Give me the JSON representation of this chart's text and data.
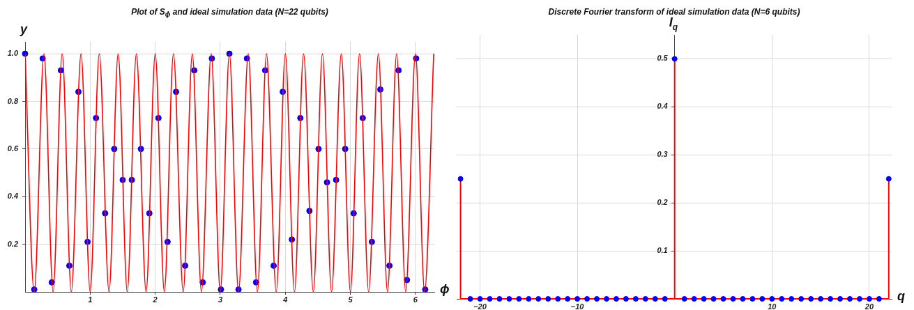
{
  "chart_data": [
    {
      "type": "line",
      "title": "Plot of S$_{ϕ}$ and ideal simulation data (N=22 qubits)",
      "xlabel": "ϕ",
      "ylabel": "y",
      "xlim": [
        0,
        6.29
      ],
      "ylim": [
        0,
        1.05
      ],
      "xticks": [
        1,
        2,
        3,
        4,
        5,
        6
      ],
      "yticks": [
        0.2,
        0.4,
        0.6,
        0.8,
        {
          "value": 1,
          "label": "1.0"
        }
      ],
      "grid": true,
      "series": [
        {
          "color": "#ff0000",
          "marker": "none",
          "x": [
            0,
            0.14,
            0.29,
            0.43,
            0.57,
            0.71,
            0.86,
            1.0,
            1.14,
            1.29,
            1.43,
            1.57,
            1.71,
            1.86,
            2.0,
            2.14,
            2.28,
            2.43,
            2.57,
            2.71,
            2.86,
            3.0,
            3.14,
            3.28,
            3.43,
            3.57,
            3.71,
            3.86,
            4.0,
            4.14,
            4.28,
            4.43,
            4.57,
            4.71,
            4.86,
            5.0,
            5.14,
            5.28,
            5.43,
            5.57,
            5.71,
            5.85,
            6.0,
            6.14,
            6.28
          ],
          "values": [
            1,
            0,
            1,
            0,
            1,
            0,
            1,
            0,
            1,
            0,
            1,
            0,
            1,
            0,
            1,
            0,
            1,
            0,
            1,
            0,
            1,
            0,
            1,
            0,
            1,
            0,
            1,
            0,
            1,
            0,
            1,
            0,
            1,
            0,
            1,
            0,
            1,
            0,
            1,
            0,
            1,
            0,
            1,
            0,
            1
          ]
        },
        {
          "type": "scatter",
          "color": "#0000ff",
          "marker": "circle",
          "x": [
            0,
            0.14,
            0.27,
            0.41,
            0.55,
            0.68,
            0.82,
            0.96,
            1.09,
            1.23,
            1.37,
            1.5,
            1.64,
            1.78,
            1.91,
            2.05,
            2.19,
            2.32,
            2.46,
            2.6,
            2.73,
            2.87,
            3.01,
            3.14,
            3.28,
            3.41,
            3.55,
            3.69,
            3.82,
            3.96,
            4.1,
            4.23,
            4.37,
            4.51,
            4.64,
            4.78,
            4.92,
            5.05,
            5.19,
            5.33,
            5.46,
            5.6,
            5.74,
            5.87,
            6.01,
            6.15
          ],
          "values": [
            1.0,
            0.01,
            0.98,
            0.04,
            0.93,
            0.11,
            0.84,
            0.21,
            0.73,
            0.33,
            0.6,
            0.47,
            0.47,
            0.6,
            0.33,
            0.73,
            0.21,
            0.84,
            0.11,
            0.93,
            0.04,
            0.98,
            0.01,
            1.0,
            0.01,
            0.98,
            0.04,
            0.93,
            0.11,
            0.84,
            0.22,
            0.73,
            0.34,
            0.6,
            0.46,
            0.47,
            0.6,
            0.33,
            0.73,
            0.21,
            0.85,
            0.11,
            0.93,
            0.05,
            0.98,
            0.01
          ]
        }
      ]
    },
    {
      "type": "lollipop",
      "title": "Discrete Fourier transform of ideal simulation data (N=6 qubits)",
      "xlabel": "q",
      "ylabel": "I$_{q}$",
      "xlim": [
        -22.4,
        22.3
      ],
      "ylim": [
        0,
        0.55
      ],
      "xticks": [
        {
          "value": -20,
          "label": "−20"
        },
        {
          "value": -10,
          "label": "−10"
        },
        10,
        20
      ],
      "yticks": [
        0.1,
        0.2,
        0.3,
        0.4,
        0.5
      ],
      "grid": true,
      "series": [
        {
          "color": "#0000ff",
          "marker": "circle",
          "x": [
            -22,
            -21,
            -20,
            -19,
            -18,
            -17,
            -16,
            -15,
            -14,
            -13,
            -12,
            -11,
            -10,
            -9,
            -8,
            -7,
            -6,
            -5,
            -4,
            -3,
            -2,
            -1,
            0,
            1,
            2,
            3,
            4,
            5,
            6,
            7,
            8,
            9,
            10,
            11,
            12,
            13,
            14,
            15,
            16,
            17,
            18,
            19,
            20,
            21,
            22
          ],
          "values": [
            0.25,
            0,
            0,
            0,
            0,
            0,
            0,
            0,
            0,
            0,
            0,
            0,
            0,
            0,
            0,
            0,
            0,
            0,
            0,
            0,
            0,
            0,
            0.5,
            0,
            0,
            0,
            0,
            0,
            0,
            0,
            0,
            0,
            0,
            0,
            0,
            0,
            0,
            0,
            0,
            0,
            0,
            0,
            0,
            0,
            0.25
          ]
        }
      ]
    }
  ]
}
